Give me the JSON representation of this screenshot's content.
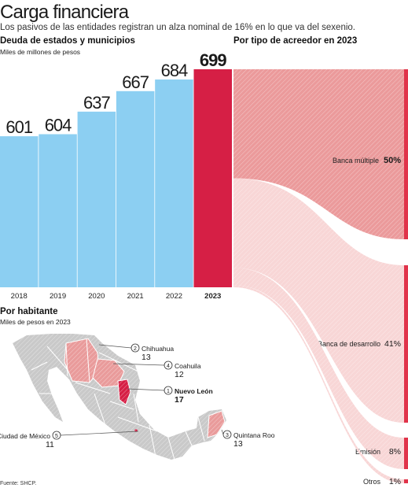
{
  "header": {
    "title": "Carga financiera",
    "subtitle": "Los pasivos de las entidades registran un alza nominal de 16% en lo que va del sexenio."
  },
  "debt_section": {
    "title": "Deuda de estados y municipios",
    "unit": "Miles de millones de pesos"
  },
  "creditor_section": {
    "title": "Por tipo de acreedor en 2023"
  },
  "habitant_section": {
    "title": "Por habitante",
    "unit": "Miles de pesos en 2023"
  },
  "source": "Fuente: SHCP.",
  "colors": {
    "bar": "#8ccff2",
    "bar_highlight": "#d61f45",
    "flow_dark": "#eb9a9b",
    "flow_light": "#f8d6d6",
    "edge": "#e0334a",
    "map_gray": "#c9c9c9",
    "map_pink": "#e99b9b",
    "map_red": "#d61f45"
  },
  "chart_data": [
    {
      "type": "bar",
      "title": "Deuda de estados y municipios",
      "subtitle": "Miles de millones de pesos",
      "categories": [
        "2018",
        "2019",
        "2020",
        "2021",
        "2022",
        "2023"
      ],
      "values": [
        601,
        604,
        637,
        667,
        684,
        699
      ],
      "highlight": "2023"
    },
    {
      "type": "sankey",
      "title": "Por tipo de acreedor en 2023",
      "categories": [
        "Banca múltiple",
        "Banca de desarrollo",
        "Emisión",
        "Otros"
      ],
      "labels": [
        "50%",
        "41%",
        "8%",
        "1%"
      ],
      "values": [
        50,
        41,
        8,
        1
      ]
    },
    {
      "type": "map",
      "title": "Por habitante",
      "subtitle": "Miles de pesos en 2023",
      "callouts": [
        {
          "num": "1",
          "name": "Nuevo León",
          "value": "17",
          "highlight": true
        },
        {
          "num": "2",
          "name": "Chihuahua",
          "value": "13",
          "highlight": false
        },
        {
          "num": "3",
          "name": "Quintana Roo",
          "value": "13",
          "highlight": false
        },
        {
          "num": "4",
          "name": "Coahuila",
          "value": "12",
          "highlight": false
        },
        {
          "num": "5",
          "name": "Ciudad de México",
          "value": "11",
          "highlight": false
        }
      ]
    }
  ]
}
